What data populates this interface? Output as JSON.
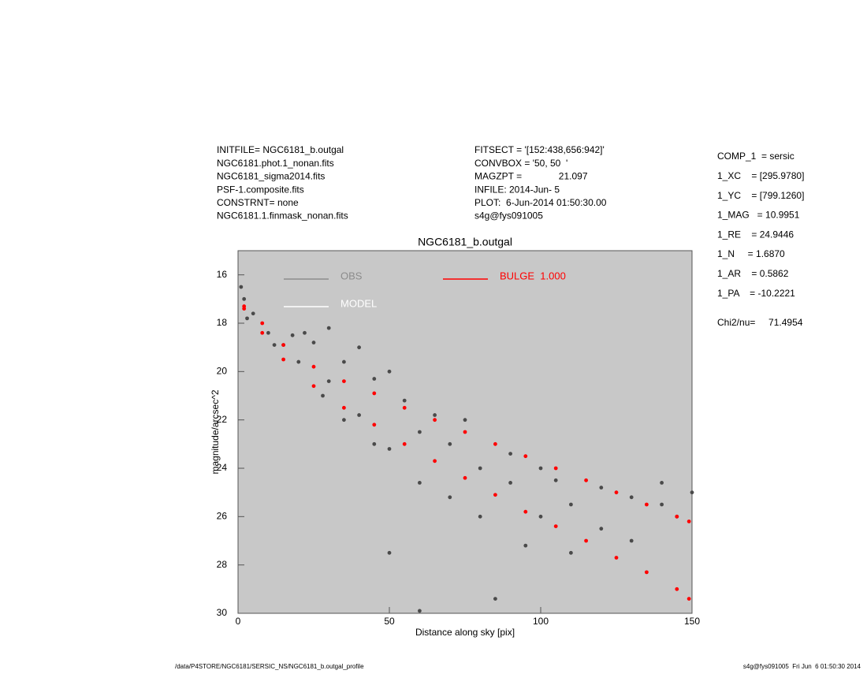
{
  "header_left": [
    "INITFILE= NGC6181_b.outgal",
    "NGC6181.phot.1_nonan.fits",
    "NGC6181_sigma2014.fits",
    "PSF-1.composite.fits",
    "CONSTRNT= none",
    "NGC6181.1.finmask_nonan.fits"
  ],
  "header_mid": [
    "FITSECT = '[152:438,656:942]'",
    "CONVBOX = '50, 50  '",
    "MAGZPT =              21.097",
    "INFILE: 2014-Jun- 5",
    "PLOT:  6-Jun-2014 01:50:30.00",
    "s4g@fys091005"
  ],
  "params": [
    "COMP_1  = sersic",
    "1_XC    = [295.9780]",
    "1_YC    = [799.1260]",
    "1_MAG   = 10.9951",
    "1_RE    = 24.9446",
    "1_N     = 1.6870",
    "1_AR    = 0.5862",
    "1_PA    = -10.2221"
  ],
  "chi2": "Chi2/nu=     71.4954",
  "footer_left": "/data/P4STORE/NGC6181/SERSIC_NS/NGC6181_b.outgal_profile",
  "footer_right": "s4g@fys091005  Fri Jun  6 01:50:30 2014",
  "chart_data": {
    "type": "scatter",
    "title": "NGC6181_b.outgal",
    "x_label": "Distance along sky [pix]",
    "y_label": "magnitude/arcsec^2",
    "xlim": [
      0,
      150
    ],
    "ylim": [
      30,
      15
    ],
    "xticks": [
      0,
      50,
      100,
      150
    ],
    "yticks": [
      16,
      18,
      20,
      22,
      24,
      26,
      28,
      30
    ],
    "legend": [
      {
        "label": "OBS",
        "color": "#8c8c8c"
      },
      {
        "label": "MODEL",
        "color": "#ffffff"
      },
      {
        "label": "BULGE  1.000",
        "color": "#ff0000"
      }
    ],
    "series": [
      {
        "name": "OBS",
        "color": "#4a4a4a",
        "x": [
          1,
          2,
          5,
          10,
          15,
          18,
          22,
          25,
          30,
          30,
          35,
          40,
          40,
          45,
          50,
          50,
          55,
          60,
          60,
          65,
          70,
          70,
          75,
          80,
          80,
          90,
          90,
          95,
          100,
          100,
          105,
          110,
          110,
          120,
          120,
          130,
          130,
          140,
          140,
          145,
          150,
          50,
          60,
          85,
          3,
          12,
          20,
          28,
          35,
          45
        ],
        "y": [
          16.5,
          17.0,
          17.6,
          18.4,
          18.9,
          18.5,
          18.4,
          18.8,
          18.2,
          20.4,
          19.6,
          21.8,
          19.0,
          20.3,
          20.0,
          23.2,
          21.2,
          22.5,
          24.6,
          21.8,
          23.0,
          25.2,
          22.0,
          24.0,
          26.0,
          23.4,
          24.6,
          27.2,
          24.0,
          26.0,
          24.5,
          25.5,
          27.5,
          24.8,
          26.5,
          25.2,
          27.0,
          24.6,
          25.5,
          26.0,
          25.0,
          27.5,
          29.9,
          29.4,
          17.8,
          18.9,
          19.6,
          21.0,
          22.0,
          23.0
        ]
      },
      {
        "name": "BULGE",
        "color": "#ff0000",
        "x": [
          2,
          8,
          15,
          25,
          35,
          45,
          55,
          65,
          75,
          85,
          95,
          105,
          115,
          125,
          135,
          145,
          149,
          2,
          8,
          15,
          25,
          35,
          45,
          55,
          65,
          75,
          85,
          95,
          105,
          115,
          125,
          135,
          145,
          149
        ],
        "y": [
          17.3,
          18.0,
          18.9,
          19.8,
          20.4,
          20.9,
          21.5,
          22.0,
          22.5,
          23.0,
          23.5,
          24.0,
          24.5,
          25.0,
          25.5,
          26.0,
          26.2,
          17.4,
          18.4,
          19.5,
          20.6,
          21.5,
          22.2,
          23.0,
          23.7,
          24.4,
          25.1,
          25.8,
          26.4,
          27.0,
          27.7,
          28.3,
          29.0,
          29.4
        ]
      }
    ]
  }
}
